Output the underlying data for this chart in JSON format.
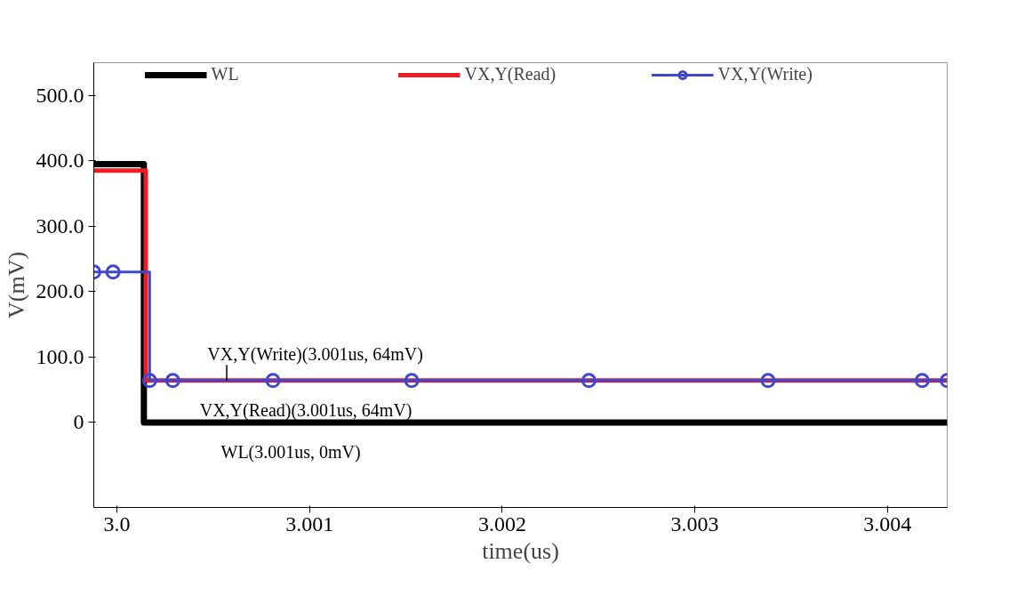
{
  "chart_data": {
    "type": "step",
    "xlabel": "time(us)",
    "ylabel": "V(mV)",
    "xlim": [
      2.99988,
      3.00431
    ],
    "xticks": [
      {
        "value": 3.0,
        "label": "3.0"
      },
      3.001,
      3.002,
      3.003,
      3.004
    ],
    "ylim": [
      -130,
      550
    ],
    "yticks": [
      {
        "value": 0,
        "label": "0"
      },
      {
        "value": 100,
        "label": "100.0"
      },
      {
        "value": 200,
        "label": "200.0"
      },
      {
        "value": 300,
        "label": "300.0"
      },
      {
        "value": 400,
        "label": "400.0"
      },
      {
        "value": 500,
        "label": "500.0"
      }
    ],
    "grid": false,
    "legend": "top",
    "line_style": "solid",
    "series": [
      {
        "name": "WL",
        "color": "#000000",
        "marker": "none",
        "x": [
          2.99988,
          3.00014,
          3.00431
        ],
        "values": [
          395,
          0,
          0
        ]
      },
      {
        "name": "VX,Y(Read)",
        "color": "#ee1c24",
        "marker": "none",
        "x": [
          2.99988,
          3.00015,
          3.00431
        ],
        "values": [
          385,
          64,
          64
        ]
      },
      {
        "name": "VX,Y(Write)",
        "color": "#3f48cc",
        "marker": "circle",
        "x": [
          2.99988,
          2.99998,
          3.00017,
          3.00029,
          3.00081,
          3.00153,
          3.00245,
          3.00338,
          3.00418,
          3.00431
        ],
        "values": [
          230,
          230,
          64,
          64,
          64,
          64,
          64,
          64,
          64,
          64
        ]
      }
    ],
    "annotations": [
      {
        "text": "VX,Y(Write)(3.001us, 64mV)",
        "x": 3.00057,
        "y": 64
      },
      {
        "text": "VX,Y(Read)(3.001us, 64mV)",
        "x": 3.00029,
        "y": 64
      },
      {
        "text": "WL(3.001us, 0mV)",
        "x": 3.0004,
        "y": 0
      }
    ]
  }
}
